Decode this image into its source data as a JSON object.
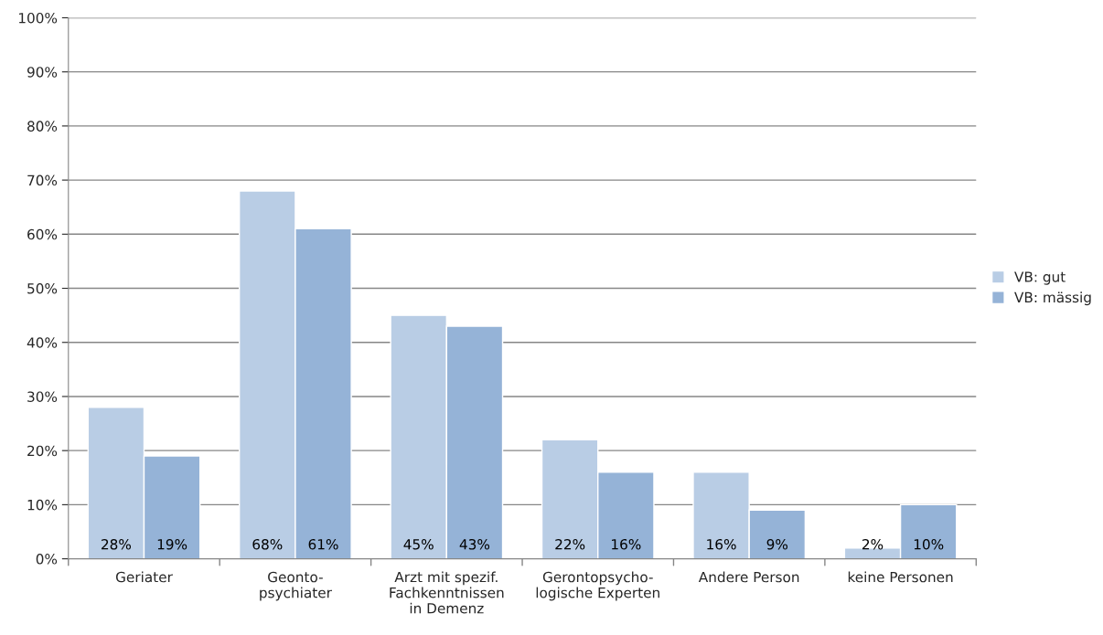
{
  "chart_data": {
    "type": "bar",
    "categories": [
      "Geriater",
      "Geonto-\npsychiater",
      "Arzt mit spezif.\nFachkenntnissen\nin Demenz",
      "Gerontopsycho-\nlogische Experten",
      "Andere Person",
      "keine Personen"
    ],
    "series": [
      {
        "name": "VB: gut",
        "color": "#b9cde5",
        "values": [
          28,
          68,
          45,
          22,
          16,
          2
        ],
        "value_labels": [
          "28%",
          "68%",
          "45%",
          "22%",
          "16%",
          "2%"
        ]
      },
      {
        "name": "VB: mässig",
        "color": "#95b3d7",
        "values": [
          19,
          61,
          43,
          16,
          9,
          10
        ],
        "value_labels": [
          "19%",
          "61%",
          "43%",
          "16%",
          "9%",
          "10%"
        ]
      }
    ],
    "ylim": [
      0,
      100
    ],
    "yticks": [
      {
        "value": 0,
        "label": "0%"
      },
      {
        "value": 10,
        "label": "10%"
      },
      {
        "value": 20,
        "label": "20%"
      },
      {
        "value": 30,
        "label": "30%"
      },
      {
        "value": 40,
        "label": "40%"
      },
      {
        "value": 50,
        "label": "50%"
      },
      {
        "value": 60,
        "label": "60%"
      },
      {
        "value": 70,
        "label": "70%"
      },
      {
        "value": 80,
        "label": "80%"
      },
      {
        "value": 90,
        "label": "90%"
      },
      {
        "value": 100,
        "label": "100%"
      }
    ],
    "grid": "y",
    "legend": "right"
  }
}
